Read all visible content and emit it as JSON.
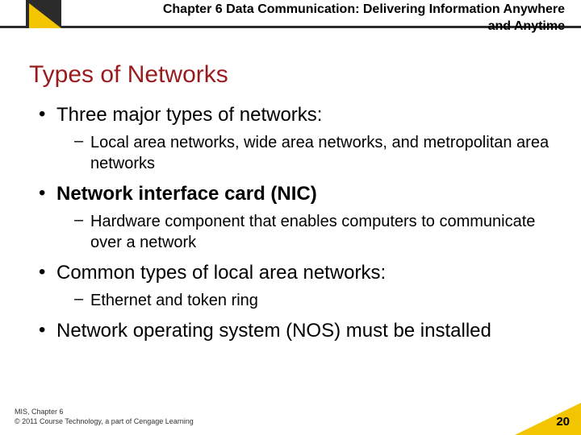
{
  "header": {
    "chapter_line1": "Chapter 6 Data Communication: Delivering Information Anywhere",
    "chapter_line2": "and Anytime"
  },
  "title": "Types of Networks",
  "bullets": {
    "b1_text": "Three major types of networks:",
    "b1_sub": "Local area networks, wide area networks, and metropolitan area networks",
    "b2_text": "Network interface card (NIC)",
    "b2_sub": "Hardware component that enables computers to communicate over a network",
    "b3_text": "Common types of local area networks:",
    "b3_sub": "Ethernet and token ring",
    "b4_text": "Network operating system (NOS) must be installed"
  },
  "footer": {
    "line1": "MIS, Chapter 6",
    "line2": "© 2011 Course Technology, a part of Cengage Learning",
    "page": "20"
  },
  "style": {
    "title_color": "#9a1b1e",
    "accent_yellow": "#f3c400",
    "header_dark": "#2b2b2b",
    "body_fontsize_l1": 24,
    "body_fontsize_l2": 20,
    "title_fontsize": 30,
    "chapter_fontsize": 16,
    "footer_fontsize": 9,
    "page_fontsize": 15
  }
}
